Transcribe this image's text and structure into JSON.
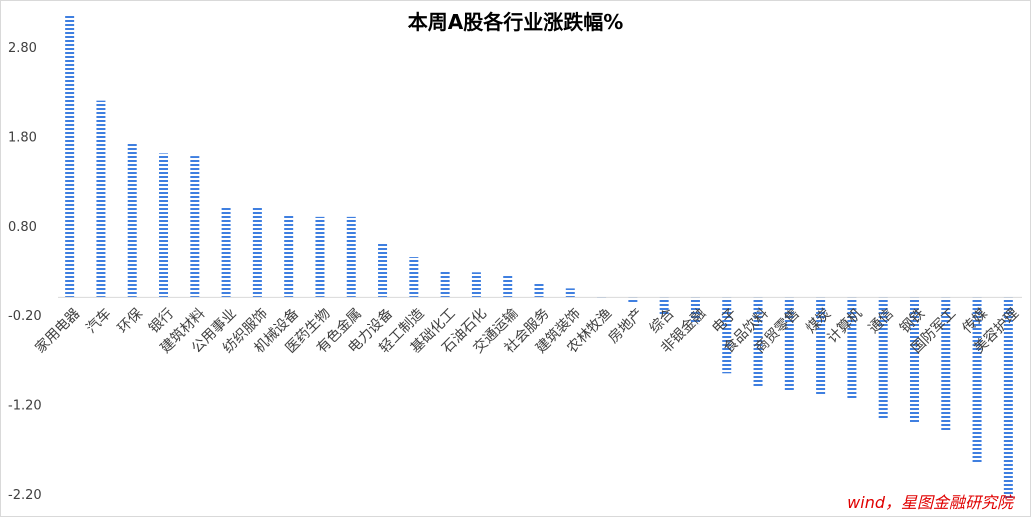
{
  "chart_data": {
    "type": "bar",
    "title": "本周A股各行业涨跌幅%",
    "xlabel": "",
    "ylabel": "",
    "ylim": [
      -2.2,
      3.2
    ],
    "yticks": [
      "2.80",
      "1.80",
      "0.80",
      "-0.20",
      "-1.20",
      "-2.20"
    ],
    "grid": false,
    "legend": "none",
    "bar_color": "#3f7fe0",
    "bar_pattern": "horizontal-stripes",
    "categories": [
      "家用电器",
      "汽车",
      "环保",
      "银行",
      "建筑材料",
      "公用事业",
      "纺织服饰",
      "机械设备",
      "医药生物",
      "有色金属",
      "电力设备",
      "轻工制造",
      "基础化工",
      "石油石化",
      "交通运输",
      "社会服务",
      "建筑装饰",
      "农林牧渔",
      "房地产",
      "综合",
      "非银金融",
      "电子",
      "食品饮料",
      "商贸零售",
      "煤炭",
      "计算机",
      "通信",
      "钢铁",
      "国防军工",
      "传媒",
      "美容护理"
    ],
    "values": [
      3.15,
      2.2,
      1.72,
      1.61,
      1.58,
      1.01,
      1.0,
      0.92,
      0.9,
      0.9,
      0.6,
      0.45,
      0.3,
      0.28,
      0.25,
      0.15,
      0.1,
      -0.01,
      -0.06,
      -0.2,
      -0.3,
      -0.85,
      -1.0,
      -1.05,
      -1.1,
      -1.14,
      -1.35,
      -1.41,
      -1.5,
      -1.85,
      -2.25
    ]
  },
  "source_note": "wind，星图金融研究院"
}
